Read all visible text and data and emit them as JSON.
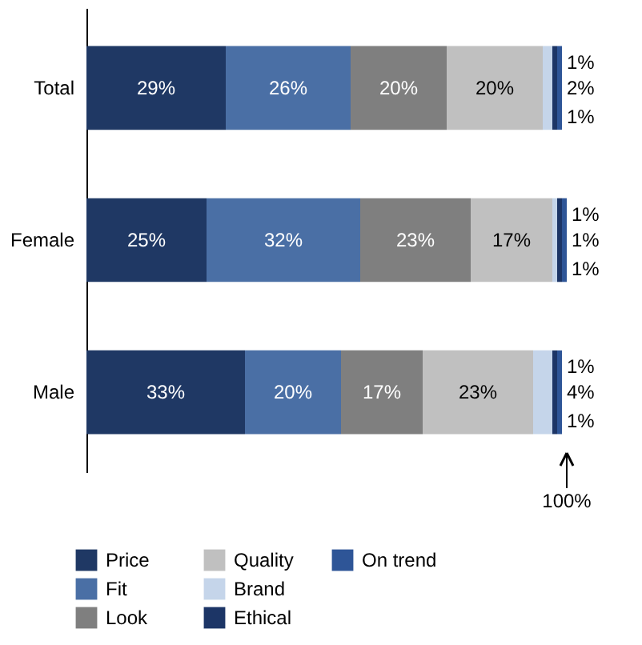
{
  "chart_data": {
    "type": "bar",
    "orientation": "horizontal",
    "stacked": true,
    "categories": [
      "Total",
      "Female",
      "Male"
    ],
    "tick_labels": "y",
    "grid": false,
    "legend": "bottom",
    "series": [
      {
        "name": "Price",
        "color": "#1f3864",
        "values": [
          29,
          25,
          33
        ],
        "value_labels": [
          "29%",
          "25%",
          "33%"
        ]
      },
      {
        "name": "Fit",
        "color": "#4a6fa5",
        "values": [
          26,
          32,
          20
        ],
        "value_labels": [
          "26%",
          "32%",
          "20%"
        ]
      },
      {
        "name": "Look",
        "color": "#7f7f7f",
        "values": [
          20,
          23,
          17
        ],
        "value_labels": [
          "20%",
          "23%",
          "17%"
        ]
      },
      {
        "name": "Quality",
        "color": "#c0c0c0",
        "values": [
          20,
          17,
          23
        ],
        "value_labels": [
          "20%",
          "17%",
          "23%"
        ]
      },
      {
        "name": "Brand",
        "color": "#c5d5ea",
        "values": [
          2,
          1,
          4
        ],
        "value_labels": [
          "2%",
          "1%",
          "4%"
        ]
      },
      {
        "name": "Ethical",
        "color": "#1c3566",
        "values": [
          1,
          1,
          1
        ],
        "value_labels": [
          "1%",
          "1%",
          "1%"
        ]
      },
      {
        "name": "On trend",
        "color": "#2e5597",
        "values": [
          1,
          1,
          1
        ],
        "value_labels": [
          "1%",
          "1%",
          "1%"
        ]
      }
    ],
    "annotations": [
      {
        "text": "100%",
        "x": 100
      }
    ]
  }
}
